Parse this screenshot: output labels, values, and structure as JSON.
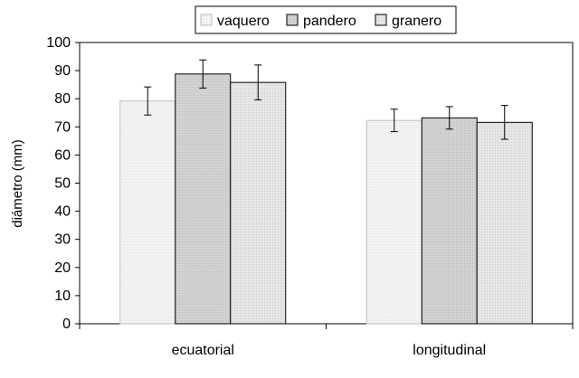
{
  "chart_data": {
    "type": "bar",
    "ylabel": "diámetro (mm)",
    "xlabel": "",
    "ylim": [
      0,
      100
    ],
    "yticks": [
      0,
      10,
      20,
      30,
      40,
      50,
      60,
      70,
      80,
      90,
      100
    ],
    "categories": [
      "ecuatorial",
      "longitudinal"
    ],
    "series": [
      {
        "name": "vaquero",
        "values": [
          79.2,
          72.3
        ],
        "errors": [
          5.0,
          4.0
        ],
        "color": "#f2f2f2"
      },
      {
        "name": "pandero",
        "values": [
          88.8,
          73.2
        ],
        "errors": [
          5.0,
          4.0
        ],
        "color": "#d4d4d4"
      },
      {
        "name": "granero",
        "values": [
          85.8,
          71.6
        ],
        "errors": [
          6.2,
          6.0
        ],
        "color": "#e4e4e4"
      }
    ],
    "legend_position": "top",
    "grid": false
  }
}
